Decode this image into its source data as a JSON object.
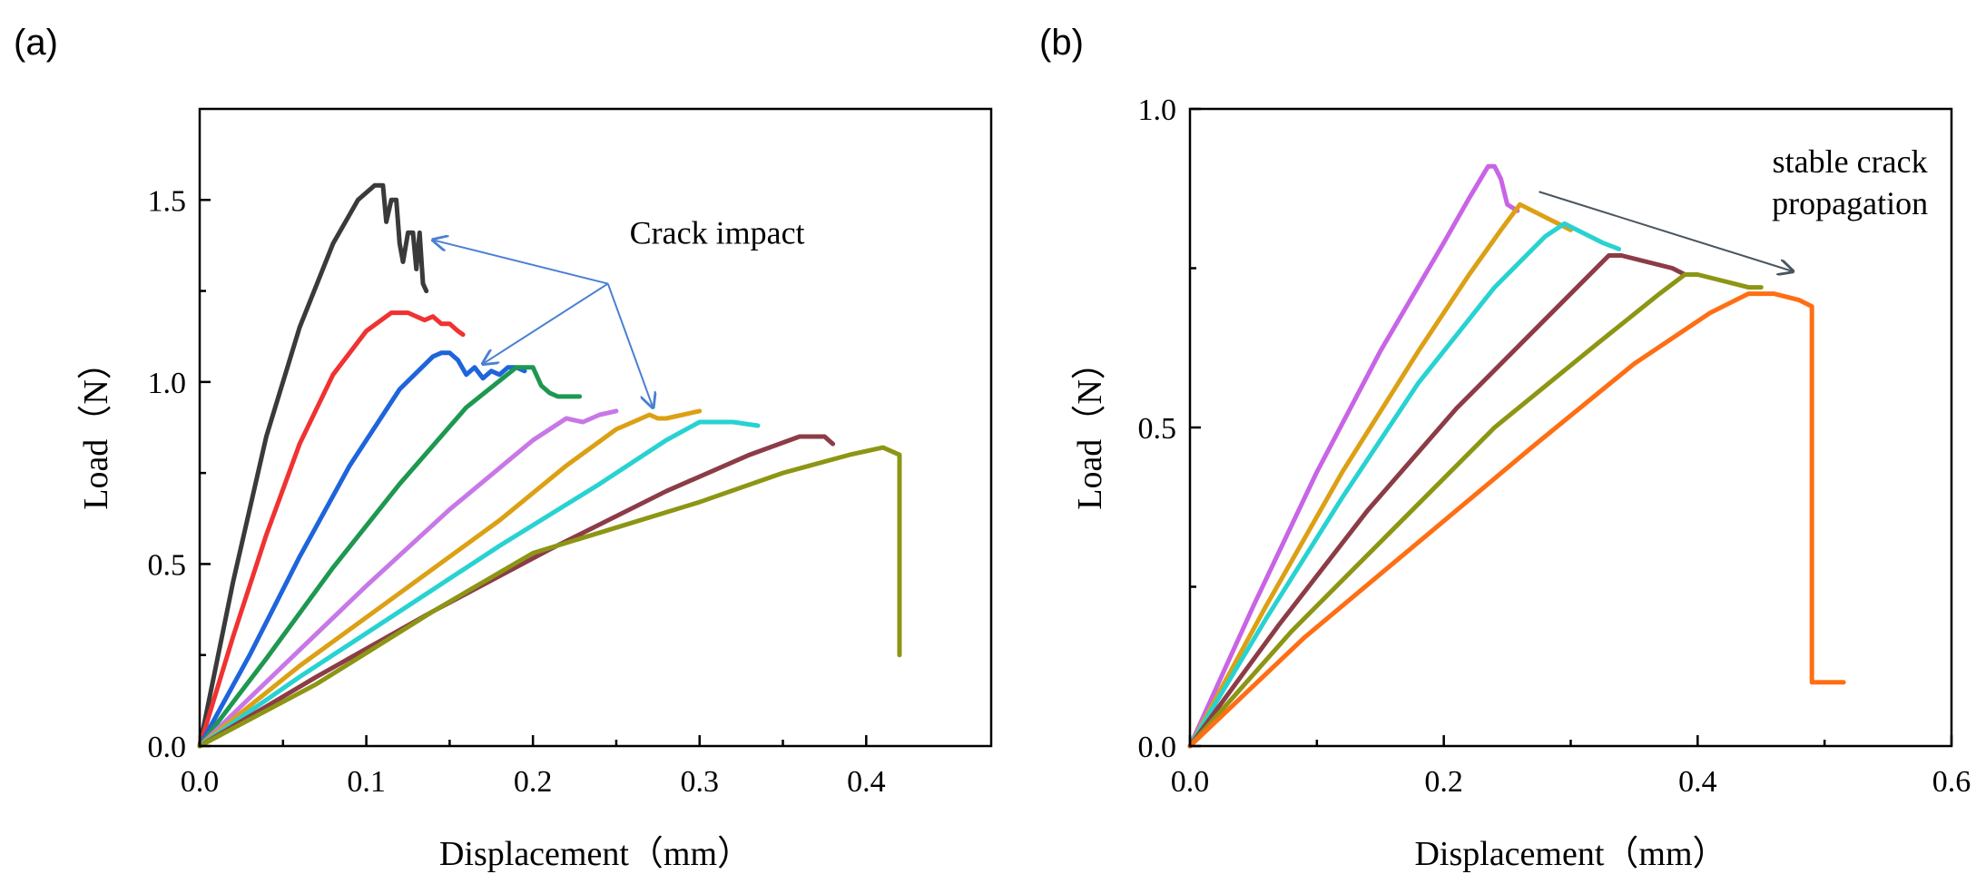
{
  "chart_data": [
    {
      "type": "line",
      "panel_label": "(a)",
      "xlabel": "Displacement（mm）",
      "ylabel": "Load（N）",
      "xlim": [
        0,
        0.475
      ],
      "ylim": [
        0,
        1.75
      ],
      "xticks": [
        0.0,
        0.1,
        0.2,
        0.3,
        0.4
      ],
      "yticks": [
        0.0,
        0.5,
        1.0,
        1.5
      ],
      "xticklabels": [
        "0.0",
        "0.1",
        "0.2",
        "0.3",
        "0.4"
      ],
      "yticklabels": [
        "0.0",
        "0.5",
        "1.0",
        "1.5"
      ],
      "annotation": {
        "text": "Crack impact",
        "x": 0.258,
        "y": 1.38
      },
      "arrows": [
        {
          "from": [
            0.245,
            1.27
          ],
          "to": [
            0.14,
            1.39
          ],
          "color": "#4a7fd4"
        },
        {
          "from": [
            0.245,
            1.27
          ],
          "to": [
            0.17,
            1.05
          ],
          "color": "#4a7fd4"
        },
        {
          "from": [
            0.245,
            1.27
          ],
          "to": [
            0.272,
            0.93
          ],
          "color": "#4a7fd4"
        }
      ],
      "series": [
        {
          "name": "s1",
          "color": "#3a3a3a",
          "x": [
            0,
            0.02,
            0.04,
            0.06,
            0.08,
            0.095,
            0.105,
            0.11,
            0.112,
            0.115,
            0.118,
            0.12,
            0.122,
            0.125,
            0.128,
            0.13,
            0.132,
            0.134,
            0.136
          ],
          "y": [
            0,
            0.45,
            0.85,
            1.15,
            1.38,
            1.5,
            1.54,
            1.54,
            1.44,
            1.5,
            1.5,
            1.38,
            1.33,
            1.41,
            1.41,
            1.31,
            1.41,
            1.27,
            1.25
          ]
        },
        {
          "name": "s2",
          "color": "#f03232",
          "x": [
            0,
            0.02,
            0.04,
            0.06,
            0.08,
            0.1,
            0.115,
            0.125,
            0.135,
            0.14,
            0.145,
            0.15,
            0.155,
            0.158
          ],
          "y": [
            0,
            0.3,
            0.58,
            0.83,
            1.02,
            1.14,
            1.19,
            1.19,
            1.17,
            1.18,
            1.16,
            1.16,
            1.14,
            1.13
          ]
        },
        {
          "name": "s3",
          "color": "#1e64dc",
          "x": [
            0,
            0.03,
            0.06,
            0.09,
            0.12,
            0.14,
            0.145,
            0.15,
            0.155,
            0.16,
            0.165,
            0.17,
            0.175,
            0.18,
            0.185,
            0.19,
            0.195
          ],
          "y": [
            0,
            0.25,
            0.52,
            0.77,
            0.98,
            1.07,
            1.08,
            1.08,
            1.06,
            1.02,
            1.04,
            1.01,
            1.03,
            1.02,
            1.04,
            1.04,
            1.03
          ]
        },
        {
          "name": "s4",
          "color": "#1e9850",
          "x": [
            0,
            0.04,
            0.08,
            0.12,
            0.16,
            0.19,
            0.2,
            0.205,
            0.21,
            0.215,
            0.22,
            0.228
          ],
          "y": [
            0,
            0.24,
            0.49,
            0.72,
            0.93,
            1.04,
            1.04,
            0.99,
            0.97,
            0.96,
            0.96,
            0.96
          ]
        },
        {
          "name": "s5",
          "color": "#c878e6",
          "x": [
            0,
            0.05,
            0.1,
            0.15,
            0.2,
            0.22,
            0.23,
            0.24,
            0.25
          ],
          "y": [
            0,
            0.22,
            0.44,
            0.65,
            0.84,
            0.9,
            0.89,
            0.91,
            0.92
          ]
        },
        {
          "name": "s6",
          "color": "#dca014",
          "x": [
            0,
            0.06,
            0.12,
            0.18,
            0.22,
            0.25,
            0.27,
            0.275,
            0.28,
            0.29,
            0.3
          ],
          "y": [
            0,
            0.22,
            0.42,
            0.62,
            0.77,
            0.87,
            0.91,
            0.9,
            0.9,
            0.91,
            0.92
          ]
        },
        {
          "name": "s7",
          "color": "#28d2d2",
          "x": [
            0,
            0.06,
            0.12,
            0.18,
            0.24,
            0.28,
            0.3,
            0.32,
            0.335
          ],
          "y": [
            0,
            0.19,
            0.37,
            0.55,
            0.72,
            0.84,
            0.89,
            0.89,
            0.88
          ]
        },
        {
          "name": "s8",
          "color": "#8c3c46",
          "x": [
            0,
            0.07,
            0.14,
            0.21,
            0.28,
            0.33,
            0.36,
            0.375,
            0.38
          ],
          "y": [
            0,
            0.19,
            0.37,
            0.54,
            0.7,
            0.8,
            0.85,
            0.85,
            0.83
          ]
        },
        {
          "name": "s9",
          "color": "#8c9614",
          "x": [
            0,
            0.07,
            0.14,
            0.2,
            0.25,
            0.3,
            0.35,
            0.39,
            0.41,
            0.42,
            0.42
          ],
          "y": [
            0,
            0.17,
            0.37,
            0.53,
            0.6,
            0.67,
            0.75,
            0.8,
            0.82,
            0.8,
            0.25
          ]
        }
      ]
    },
    {
      "type": "line",
      "panel_label": "(b)",
      "xlabel": "Displacement（mm）",
      "ylabel": "Load（N）",
      "xlim": [
        0,
        0.6
      ],
      "ylim": [
        0,
        1.0
      ],
      "xticks": [
        0.0,
        0.2,
        0.4,
        0.6
      ],
      "yticks": [
        0.0,
        0.5,
        1.0
      ],
      "xticklabels": [
        "0.0",
        "0.2",
        "0.4",
        "0.6"
      ],
      "yticklabels": [
        "0.0",
        "0.5",
        "1.0"
      ],
      "annotation": {
        "lines": [
          "stable crack",
          "propagation"
        ],
        "x": 0.52,
        "y": 0.9
      },
      "arrows": [
        {
          "from": [
            0.275,
            0.87
          ],
          "to": [
            0.475,
            0.745
          ],
          "color": "#4a5560"
        }
      ],
      "series": [
        {
          "name": "s1",
          "color": "#c864e6",
          "x": [
            0,
            0.05,
            0.1,
            0.15,
            0.2,
            0.22,
            0.235,
            0.24,
            0.245,
            0.25,
            0.258
          ],
          "y": [
            0,
            0.22,
            0.43,
            0.62,
            0.79,
            0.86,
            0.91,
            0.91,
            0.89,
            0.85,
            0.84
          ]
        },
        {
          "name": "s2",
          "color": "#dca014",
          "x": [
            0,
            0.06,
            0.12,
            0.18,
            0.22,
            0.245,
            0.26,
            0.27,
            0.28,
            0.29,
            0.3
          ],
          "y": [
            0,
            0.22,
            0.43,
            0.62,
            0.74,
            0.81,
            0.85,
            0.84,
            0.83,
            0.82,
            0.81
          ]
        },
        {
          "name": "s3",
          "color": "#28d2d2",
          "x": [
            0,
            0.06,
            0.12,
            0.18,
            0.24,
            0.28,
            0.295,
            0.305,
            0.315,
            0.325,
            0.338
          ],
          "y": [
            0,
            0.2,
            0.39,
            0.57,
            0.72,
            0.8,
            0.82,
            0.81,
            0.8,
            0.79,
            0.78
          ]
        },
        {
          "name": "s4",
          "color": "#8c3c46",
          "x": [
            0,
            0.07,
            0.14,
            0.21,
            0.28,
            0.32,
            0.33,
            0.34,
            0.36,
            0.38,
            0.39
          ],
          "y": [
            0,
            0.19,
            0.37,
            0.53,
            0.67,
            0.75,
            0.77,
            0.77,
            0.76,
            0.75,
            0.74
          ]
        },
        {
          "name": "s5",
          "color": "#8c9614",
          "x": [
            0,
            0.08,
            0.16,
            0.24,
            0.32,
            0.37,
            0.39,
            0.4,
            0.42,
            0.44,
            0.45
          ],
          "y": [
            0,
            0.18,
            0.34,
            0.5,
            0.63,
            0.71,
            0.74,
            0.74,
            0.73,
            0.72,
            0.72
          ]
        },
        {
          "name": "s6",
          "color": "#ff6e14",
          "x": [
            0,
            0.09,
            0.18,
            0.27,
            0.35,
            0.41,
            0.44,
            0.46,
            0.48,
            0.49,
            0.49,
            0.495,
            0.51,
            0.515
          ],
          "y": [
            0,
            0.17,
            0.32,
            0.47,
            0.6,
            0.68,
            0.71,
            0.71,
            0.7,
            0.69,
            0.1,
            0.1,
            0.1,
            0.1
          ]
        }
      ]
    }
  ]
}
